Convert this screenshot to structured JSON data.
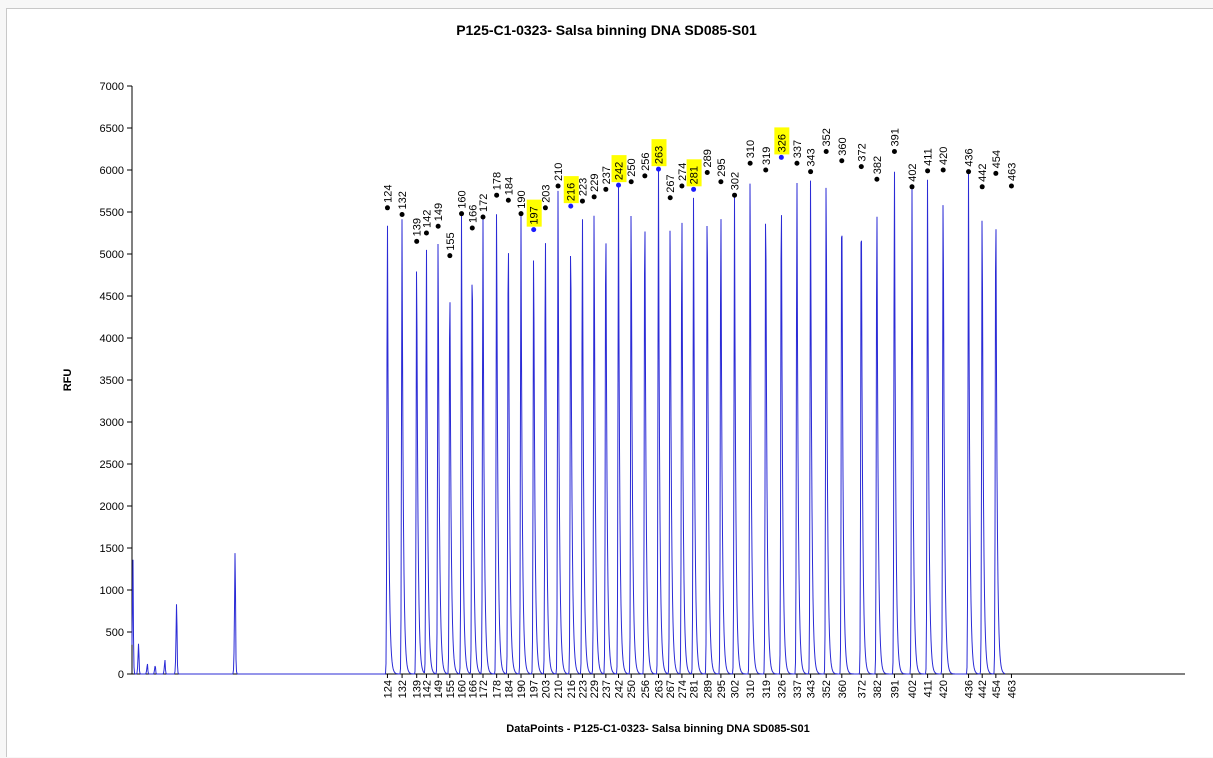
{
  "chart_data": {
    "type": "line",
    "title": "P125-C1-0323- Salsa binning DNA SD085-S01",
    "xlabel": "DataPoints - P125-C1-0323- Salsa binning DNA SD085-S01",
    "ylabel": "RFU",
    "ylim": [
      0,
      7000
    ],
    "yticks": [
      "0",
      "500",
      "1000",
      "1500",
      "2000",
      "2500",
      "3000",
      "3500",
      "4000",
      "4500",
      "5000",
      "5500",
      "6000",
      "6500",
      "7000"
    ],
    "grid": false,
    "legend": "none",
    "line_color": "#2b2bd6",
    "marker_color": "#000000",
    "highlight_marker_color": "#1a1aff",
    "highlight_color": "#ffff00",
    "noise_peaks": [
      {
        "pos": 0.6,
        "rfu": 1400
      },
      {
        "pos": 3.5,
        "rfu": 400
      },
      {
        "pos": 8,
        "rfu": 120
      },
      {
        "pos": 12,
        "rfu": 110
      },
      {
        "pos": 17,
        "rfu": 170
      },
      {
        "pos": 23,
        "rfu": 940
      },
      {
        "pos": 53,
        "rfu": 1630
      }
    ],
    "peaks": [
      {
        "label": "124",
        "pos": 131,
        "rfu": 5550,
        "highlight": false
      },
      {
        "label": "132",
        "pos": 138.5,
        "rfu": 5470,
        "highlight": false
      },
      {
        "label": "139",
        "pos": 146,
        "rfu": 5150,
        "highlight": false
      },
      {
        "label": "142",
        "pos": 151,
        "rfu": 5250,
        "highlight": false
      },
      {
        "label": "149",
        "pos": 157,
        "rfu": 5330,
        "highlight": false
      },
      {
        "label": "155",
        "pos": 163,
        "rfu": 4980,
        "highlight": false
      },
      {
        "label": "160",
        "pos": 169,
        "rfu": 5480,
        "highlight": false
      },
      {
        "label": "166",
        "pos": 174.5,
        "rfu": 5310,
        "highlight": false
      },
      {
        "label": "172",
        "pos": 180,
        "rfu": 5440,
        "highlight": false
      },
      {
        "label": "178",
        "pos": 187,
        "rfu": 5700,
        "highlight": false
      },
      {
        "label": "184",
        "pos": 193,
        "rfu": 5640,
        "highlight": false
      },
      {
        "label": "190",
        "pos": 199.5,
        "rfu": 5480,
        "highlight": false
      },
      {
        "label": "197",
        "pos": 206,
        "rfu": 5290,
        "highlight": true
      },
      {
        "label": "203",
        "pos": 212,
        "rfu": 5550,
        "highlight": false
      },
      {
        "label": "210",
        "pos": 218.5,
        "rfu": 5810,
        "highlight": false
      },
      {
        "label": "216",
        "pos": 225,
        "rfu": 5570,
        "highlight": true
      },
      {
        "label": "223",
        "pos": 231,
        "rfu": 5630,
        "highlight": false
      },
      {
        "label": "229",
        "pos": 237,
        "rfu": 5680,
        "highlight": false
      },
      {
        "label": "237",
        "pos": 243,
        "rfu": 5770,
        "highlight": false
      },
      {
        "label": "242",
        "pos": 249.5,
        "rfu": 5820,
        "highlight": true
      },
      {
        "label": "250",
        "pos": 256,
        "rfu": 5860,
        "highlight": false
      },
      {
        "label": "256",
        "pos": 263,
        "rfu": 5930,
        "highlight": false
      },
      {
        "label": "263",
        "pos": 270,
        "rfu": 6010,
        "highlight": true
      },
      {
        "label": "267",
        "pos": 276,
        "rfu": 5670,
        "highlight": false
      },
      {
        "label": "274",
        "pos": 282,
        "rfu": 5810,
        "highlight": false
      },
      {
        "label": "281",
        "pos": 288,
        "rfu": 5770,
        "highlight": true
      },
      {
        "label": "289",
        "pos": 295,
        "rfu": 5970,
        "highlight": false
      },
      {
        "label": "295",
        "pos": 302,
        "rfu": 5860,
        "highlight": false
      },
      {
        "label": "302",
        "pos": 309,
        "rfu": 5700,
        "highlight": false
      },
      {
        "label": "310",
        "pos": 317,
        "rfu": 6080,
        "highlight": false
      },
      {
        "label": "319",
        "pos": 325,
        "rfu": 6000,
        "highlight": false
      },
      {
        "label": "326",
        "pos": 333,
        "rfu": 6150,
        "highlight": true
      },
      {
        "label": "337",
        "pos": 341,
        "rfu": 6080,
        "highlight": false
      },
      {
        "label": "343",
        "pos": 348,
        "rfu": 5980,
        "highlight": false
      },
      {
        "label": "352",
        "pos": 356,
        "rfu": 6220,
        "highlight": false
      },
      {
        "label": "360",
        "pos": 364,
        "rfu": 6110,
        "highlight": false
      },
      {
        "label": "372",
        "pos": 374,
        "rfu": 6040,
        "highlight": false
      },
      {
        "label": "382",
        "pos": 382,
        "rfu": 5890,
        "highlight": false
      },
      {
        "label": "391",
        "pos": 391,
        "rfu": 6220,
        "highlight": false
      },
      {
        "label": "402",
        "pos": 400,
        "rfu": 5800,
        "highlight": false
      },
      {
        "label": "411",
        "pos": 408,
        "rfu": 5990,
        "highlight": false
      },
      {
        "label": "420",
        "pos": 416,
        "rfu": 6000,
        "highlight": false
      },
      {
        "label": "436",
        "pos": 429,
        "rfu": 5980,
        "highlight": false
      },
      {
        "label": "442",
        "pos": 436,
        "rfu": 5800,
        "highlight": false
      },
      {
        "label": "454",
        "pos": 443,
        "rfu": 5960,
        "highlight": false
      },
      {
        "label": "463",
        "pos": 451,
        "rfu": 5810,
        "highlight": false
      }
    ]
  }
}
